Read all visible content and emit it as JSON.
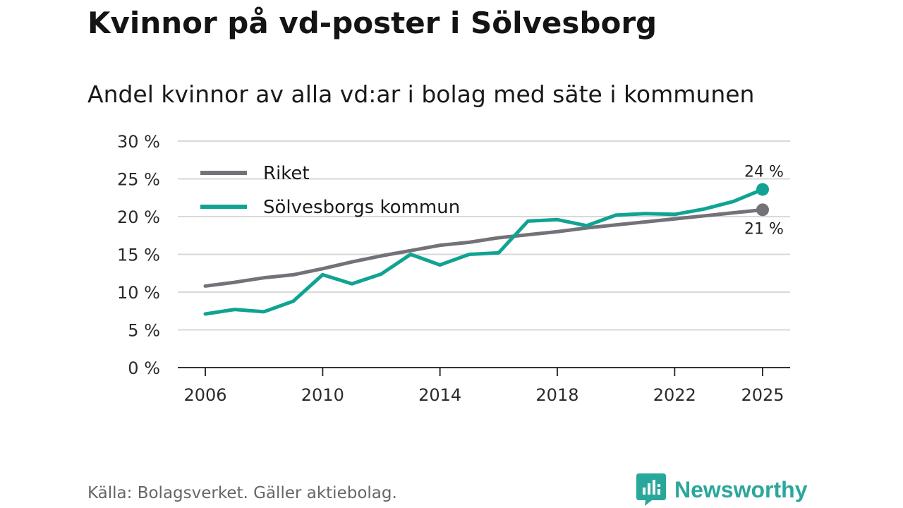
{
  "header": {
    "title": "Kvinnor på vd-poster i Sölvesborg",
    "subtitle": "Andel kvinnor av alla vd:ar i bolag med säte i kommunen"
  },
  "footer": {
    "source": "Källa: Bolagsverket. Gäller aktiebolag.",
    "brand": "Newsworthy",
    "brand_color": "#2aa79b"
  },
  "chart_data": {
    "type": "line",
    "title": "Kvinnor på vd-poster i Sölvesborg",
    "subtitle": "Andel kvinnor av alla vd:ar i bolag med säte i kommunen",
    "xlabel": "",
    "ylabel": "",
    "x": [
      2006,
      2007,
      2008,
      2009,
      2010,
      2011,
      2012,
      2013,
      2014,
      2015,
      2016,
      2017,
      2018,
      2019,
      2020,
      2021,
      2022,
      2023,
      2024,
      2025
    ],
    "x_ticks": [
      2006,
      2010,
      2014,
      2018,
      2022,
      2025
    ],
    "x_tick_labels": [
      "2006",
      "2010",
      "2014",
      "2018",
      "2022",
      "2025"
    ],
    "ylim": [
      0,
      30
    ],
    "y_ticks": [
      0,
      5,
      10,
      15,
      20,
      25,
      30
    ],
    "y_tick_labels": [
      "0 %",
      "5 %",
      "10 %",
      "15 %",
      "20 %",
      "25 %",
      "30 %"
    ],
    "grid": true,
    "legend_position": "top-left",
    "series": [
      {
        "name": "Riket",
        "color": "#737278",
        "values": [
          10.8,
          11.3,
          11.9,
          12.3,
          13.1,
          14.0,
          14.8,
          15.5,
          16.2,
          16.6,
          17.2,
          17.6,
          18.0,
          18.5,
          18.9,
          19.3,
          19.7,
          20.1,
          20.5,
          20.9
        ],
        "end_label": "21 %"
      },
      {
        "name": "Sölvesborgs kommun",
        "color": "#10a393",
        "values": [
          7.1,
          7.7,
          7.4,
          8.8,
          12.3,
          11.1,
          12.4,
          15.0,
          13.6,
          15.0,
          15.2,
          19.4,
          19.6,
          18.8,
          20.2,
          20.4,
          20.3,
          21.0,
          22.0,
          23.6
        ],
        "end_label": "24 %"
      }
    ]
  }
}
